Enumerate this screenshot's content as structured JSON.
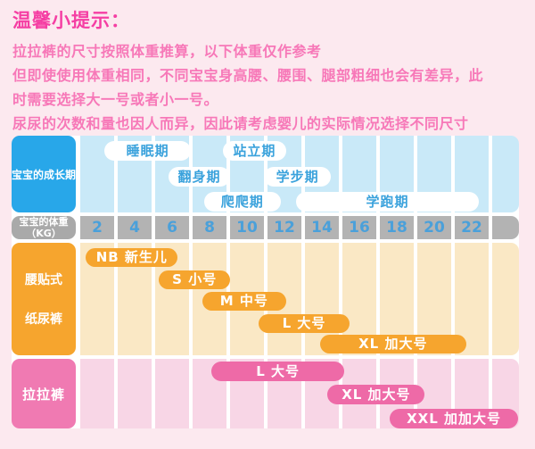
{
  "tips": {
    "title": "温馨小提示：",
    "lines": [
      "拉拉裤的尺寸按照体重推算，以下体重仅作参考",
      "但即使使用体重相同，不同宝宝身高腰、腰围、腿部粗细也会有差异，此",
      "时需要选择大一号或者小一号。",
      "尿尿的次数和量也因人而异，因此请考虑婴儿的实际情况选择不同尺寸"
    ]
  },
  "chart": {
    "growth_label": "宝宝的成长期",
    "weight_label_line1": "宝宝的体重",
    "weight_label_line2": "（KG）",
    "tape_label_line1": "腰贴式",
    "tape_label_line2": "纸尿裤",
    "pants_label": "拉拉裤"
  },
  "colors": {
    "page_bg": "#fce9ef",
    "title_pink": "#f53ea3",
    "body_pink": "#f778b8",
    "growth_blue": "#28a7e9",
    "column_blue": "#c9e9f8",
    "pill_text_blue": "#3aa2dc",
    "axis_gray": "#b3b3b3",
    "tick_blue": "#4aa0da",
    "orange": "#f6a52e",
    "cream": "#fae8c5",
    "pants_pink": "#ee6aa7",
    "pants_label_pink": "#f07ab2",
    "column_pink": "#f8d6e6"
  },
  "chart_data": {
    "type": "table",
    "title": "婴儿纸尿裤/拉拉裤尺寸对照表",
    "x_axis": {
      "label": "宝宝的体重（KG）",
      "ticks": [
        "2",
        "4",
        "6",
        "8",
        "10",
        "12",
        "14",
        "16",
        "18",
        "20",
        "22"
      ],
      "range": [
        1,
        24.5
      ],
      "grid": true
    },
    "legend_position": "none",
    "sections": [
      {
        "id": "growth",
        "label": "宝宝的成长期",
        "items": [
          {
            "label": "睡眠期",
            "from_kg": 2.4,
            "to_kg": 7.0,
            "row": 0
          },
          {
            "label": "站立期",
            "from_kg": 8.7,
            "to_kg": 12.1,
            "row": 0
          },
          {
            "label": "翻身期",
            "from_kg": 5.8,
            "to_kg": 9.1,
            "row": 1
          },
          {
            "label": "学步期",
            "from_kg": 10.9,
            "to_kg": 14.5,
            "row": 1
          },
          {
            "label": "爬爬期",
            "from_kg": 7.7,
            "to_kg": 11.8,
            "row": 2
          },
          {
            "label": "学跑期",
            "from_kg": 12.6,
            "to_kg": 22.4,
            "row": 2
          }
        ]
      },
      {
        "id": "tape",
        "label": "腰贴式纸尿裤",
        "items": [
          {
            "label": "NB 新生儿",
            "from_kg": 1.4,
            "to_kg": 6.3,
            "row": 0
          },
          {
            "label": "S 小号",
            "from_kg": 5.3,
            "to_kg": 9.1,
            "row": 1
          },
          {
            "label": "M 中号",
            "from_kg": 7.6,
            "to_kg": 12.1,
            "row": 2
          },
          {
            "label": "L 大号",
            "from_kg": 10.6,
            "to_kg": 15.5,
            "row": 3
          },
          {
            "label": "XL 加大号",
            "from_kg": 13.9,
            "to_kg": 21.7,
            "row": 4
          }
        ]
      },
      {
        "id": "pants",
        "label": "拉拉裤",
        "items": [
          {
            "label": "L 大号",
            "from_kg": 8.1,
            "to_kg": 15.2,
            "row": 0
          },
          {
            "label": "XL 加大号",
            "from_kg": 14.3,
            "to_kg": 19.5,
            "row": 1
          },
          {
            "label": "XXL 加加大号",
            "from_kg": 17.6,
            "to_kg": 24.5,
            "row": 2
          }
        ]
      }
    ]
  }
}
